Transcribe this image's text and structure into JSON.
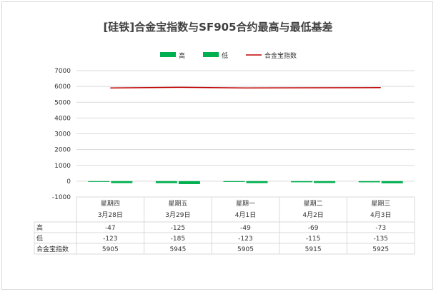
{
  "chart_data": {
    "type": "bar",
    "title": "[硅铁]合金宝指数与SF905合约最高与最低基差",
    "categories": [
      {
        "weekday": "星期四",
        "date": "3月28日"
      },
      {
        "weekday": "星期五",
        "date": "3月29日"
      },
      {
        "weekday": "星期一",
        "date": "4月1日"
      },
      {
        "weekday": "星期二",
        "date": "4月2日"
      },
      {
        "weekday": "星期三",
        "date": "4月3日"
      }
    ],
    "series": [
      {
        "name": "高",
        "kind": "bar",
        "color": "#00b050",
        "values": [
          -47,
          -125,
          -49,
          -69,
          -73
        ]
      },
      {
        "name": "低",
        "kind": "bar",
        "color": "#00b050",
        "values": [
          -123,
          -185,
          -123,
          -115,
          -135
        ]
      },
      {
        "name": "合金宝指数",
        "kind": "line",
        "color": "#c00000",
        "values": [
          5905,
          5945,
          5905,
          5915,
          5925
        ]
      }
    ],
    "ylim": [
      -1000,
      7000
    ],
    "yticks": [
      "7000",
      "6000",
      "5000",
      "4000",
      "3000",
      "2000",
      "1000",
      "0",
      "-1000"
    ],
    "grid": true,
    "legend_position": "top",
    "data_table": {
      "row_labels": [
        "高",
        "低",
        "合金宝指数"
      ],
      "rows": [
        [
          "-47",
          "-125",
          "-49",
          "-69",
          "-73"
        ],
        [
          "-123",
          "-185",
          "-123",
          "-115",
          "-135"
        ],
        [
          "5905",
          "5945",
          "5905",
          "5915",
          "5925"
        ]
      ]
    }
  }
}
